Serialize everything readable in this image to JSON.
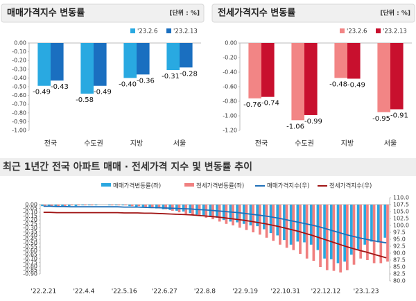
{
  "chart_data": [
    {
      "type": "bar",
      "title": "매매가격지수 변동률",
      "unit_label": "[단위 : %]",
      "categories": [
        "전국",
        "수도권",
        "지방",
        "서울"
      ],
      "series": [
        {
          "name": "'23.2.6",
          "color": "#29a9e1",
          "values": [
            -0.49,
            -0.58,
            -0.4,
            -0.31
          ],
          "value_labels": [
            "-0.49",
            "-0.58",
            "-0.40",
            "-0.31"
          ]
        },
        {
          "name": "'23.2.13",
          "color": "#1a6fc0",
          "values": [
            -0.43,
            -0.49,
            -0.36,
            -0.28
          ],
          "value_labels": [
            "-0.43",
            "-0.49",
            "-0.36",
            "-0.28"
          ]
        }
      ],
      "ylim": [
        -1,
        0
      ],
      "yticks": [
        {
          "value": 0,
          "label": "0.00"
        },
        {
          "value": -0.1,
          "label": "-0.10"
        },
        {
          "value": -0.2,
          "label": "-0.20"
        },
        {
          "value": -0.3,
          "label": "-0.30"
        },
        {
          "value": -0.4,
          "label": "-0.40"
        },
        {
          "value": -0.5,
          "label": "-0.50"
        },
        {
          "value": -0.6,
          "label": "-0.60"
        },
        {
          "value": -0.7,
          "label": "-0.70"
        },
        {
          "value": -0.8,
          "label": "-0.80"
        },
        {
          "value": -0.9,
          "label": "-0.90"
        },
        {
          "value": -1,
          "label": "-1.00"
        }
      ]
    },
    {
      "type": "bar",
      "title": "전세가격지수 변동률",
      "unit_label": "[단위 : %]",
      "categories": [
        "전국",
        "수도권",
        "지방",
        "서울"
      ],
      "series": [
        {
          "name": "'23.2.6",
          "color": "#f28585",
          "values": [
            -0.76,
            -1.06,
            -0.48,
            -0.95
          ],
          "value_labels": [
            "-0.76",
            "-1.06",
            "-0.48",
            "-0.95"
          ]
        },
        {
          "name": "'23.2.13",
          "color": "#c8102e",
          "values": [
            -0.74,
            -0.99,
            -0.49,
            -0.91
          ],
          "value_labels": [
            "-0.74",
            "-0.99",
            "-0.49",
            "-0.91"
          ]
        }
      ],
      "ylim": [
        -1.2,
        0
      ],
      "yticks": [
        {
          "value": 0,
          "label": "0.00"
        },
        {
          "value": -0.2,
          "label": "-0.20"
        },
        {
          "value": -0.4,
          "label": "-0.40"
        },
        {
          "value": -0.6,
          "label": "-0.60"
        },
        {
          "value": -0.8,
          "label": "-0.80"
        },
        {
          "value": -1,
          "label": "-1.00"
        },
        {
          "value": -1.2,
          "label": "-1.20"
        }
      ]
    },
    {
      "type": "combo",
      "title": "최근 1년간 전국 아파트 매매 · 전세가격 지수 및 변동률 추이",
      "categories": [
        "'22.2.21",
        null,
        null,
        null,
        null,
        null,
        "'22.4.4",
        null,
        null,
        null,
        null,
        null,
        "'22.5.16",
        null,
        null,
        null,
        null,
        null,
        "'22.6.27",
        null,
        null,
        null,
        null,
        null,
        "'22.8.8",
        null,
        null,
        null,
        null,
        null,
        "'22.9.19",
        null,
        null,
        null,
        null,
        null,
        "'22.10.31",
        null,
        null,
        null,
        null,
        null,
        "'22.12.12",
        null,
        null,
        null,
        null,
        null,
        "'23.1.23",
        null,
        null,
        null
      ],
      "series": [
        {
          "name": "매매가격변동률(좌)",
          "type": "bar",
          "color": "#2aa7e0",
          "values": [
            -0.02,
            -0.02,
            -0.03,
            -0.03,
            -0.02,
            -0.02,
            -0.01,
            -0.01,
            -0.01,
            0,
            -0.01,
            -0.01,
            -0.01,
            -0.02,
            -0.03,
            -0.03,
            -0.04,
            -0.05,
            -0.06,
            -0.07,
            -0.08,
            -0.09,
            -0.11,
            -0.13,
            -0.14,
            -0.16,
            -0.17,
            -0.2,
            -0.22,
            -0.23,
            -0.25,
            -0.27,
            -0.28,
            -0.32,
            -0.37,
            -0.4,
            -0.46,
            -0.52,
            -0.48,
            -0.49,
            -0.52,
            -0.59,
            -0.7,
            -0.71,
            -0.76,
            -0.74,
            -0.65,
            -0.59,
            -0.52,
            -0.48,
            -0.49,
            -0.43
          ]
        },
        {
          "name": "전세가격변동률(좌)",
          "type": "bar",
          "color": "#f08080",
          "values": [
            -0.02,
            -0.02,
            -0.02,
            -0.02,
            -0.01,
            -0.01,
            -0.01,
            -0.01,
            0,
            0,
            -0.01,
            -0.01,
            -0.01,
            -0.02,
            -0.02,
            -0.03,
            -0.04,
            -0.05,
            -0.06,
            -0.08,
            -0.1,
            -0.12,
            -0.13,
            -0.15,
            -0.17,
            -0.19,
            -0.22,
            -0.25,
            -0.27,
            -0.3,
            -0.33,
            -0.36,
            -0.39,
            -0.43,
            -0.47,
            -0.52,
            -0.56,
            -0.59,
            -0.64,
            -0.7,
            -0.73,
            -0.81,
            -0.85,
            -0.86,
            -0.88,
            -0.85,
            -0.78,
            -0.7,
            -0.72,
            -0.76,
            -0.76,
            -0.74
          ]
        },
        {
          "name": "매매가격지수(우)",
          "type": "line",
          "axis": "y2",
          "color": "#1f6fb8",
          "values": [
            106.9,
            106.9,
            106.8,
            106.8,
            106.7,
            106.7,
            106.7,
            106.7,
            106.7,
            106.7,
            106.7,
            106.7,
            106.6,
            106.6,
            106.6,
            106.5,
            106.4,
            106.4,
            106.3,
            106.2,
            106.1,
            106,
            105.9,
            105.7,
            105.6,
            105.4,
            105.2,
            105,
            104.8,
            104.6,
            104.3,
            104,
            103.7,
            103.4,
            103,
            102.6,
            102.1,
            101.6,
            101.1,
            100.6,
            100.1,
            99.5,
            98.8,
            98.1,
            97.4,
            96.7,
            96.1,
            95.5,
            95,
            94.5,
            94.1,
            93.7
          ]
        },
        {
          "name": "전세가격지수(우)",
          "type": "line",
          "axis": "y2",
          "color": "#a01414",
          "values": [
            104.7,
            104.7,
            104.6,
            104.6,
            104.6,
            104.6,
            104.6,
            104.6,
            104.6,
            104.6,
            104.6,
            104.6,
            104.5,
            104.5,
            104.5,
            104.4,
            104.4,
            104.3,
            104.2,
            104.1,
            104,
            103.9,
            103.8,
            103.6,
            103.4,
            103.2,
            103,
            102.7,
            102.4,
            102.1,
            101.8,
            101.4,
            101,
            100.6,
            100.1,
            99.6,
            99,
            98.4,
            97.8,
            97.1,
            96.4,
            95.6,
            94.8,
            94,
            93.2,
            92.4,
            91.7,
            91,
            90.4,
            89.7,
            89,
            88.3
          ]
        }
      ],
      "ylim": [
        -0.9,
        0
      ],
      "yticks": [
        {
          "value": 0,
          "label": "0.00"
        },
        {
          "value": -0.05,
          "label": "-0.05"
        },
        {
          "value": -0.1,
          "label": "-0.10"
        },
        {
          "value": -0.15,
          "label": "-0.15"
        },
        {
          "value": -0.2,
          "label": "-0.20"
        },
        {
          "value": -0.25,
          "label": "-0.25"
        },
        {
          "value": -0.3,
          "label": "-0.30"
        },
        {
          "value": -0.35,
          "label": "-0.35"
        },
        {
          "value": -0.4,
          "label": "-0.40"
        },
        {
          "value": -0.45,
          "label": "-0.45"
        },
        {
          "value": -0.5,
          "label": "-0.50"
        },
        {
          "value": -0.55,
          "label": "-0.55"
        },
        {
          "value": -0.6,
          "label": "-0.60"
        },
        {
          "value": -0.65,
          "label": "-0.65"
        },
        {
          "value": -0.7,
          "label": "-0.70"
        },
        {
          "value": -0.75,
          "label": "-0.75"
        },
        {
          "value": -0.8,
          "label": "-0.80"
        },
        {
          "value": -0.85,
          "label": "-0.85"
        },
        {
          "value": -0.9,
          "label": "-0.90"
        }
      ],
      "y2lim": [
        80,
        110
      ],
      "y2ticks": [
        {
          "value": 110,
          "label": "110.0"
        },
        {
          "value": 107.5,
          "label": "107.5"
        },
        {
          "value": 105,
          "label": "105.0"
        },
        {
          "value": 102.5,
          "label": "102.5"
        },
        {
          "value": 100,
          "label": "100.0"
        },
        {
          "value": 97.5,
          "label": "97.5"
        },
        {
          "value": 95,
          "label": "95.0"
        },
        {
          "value": 92.5,
          "label": "92.5"
        },
        {
          "value": 90,
          "label": "90.0"
        },
        {
          "value": 87.5,
          "label": "87.5"
        },
        {
          "value": 85,
          "label": "85.0"
        },
        {
          "value": 82.5,
          "label": "82.5"
        },
        {
          "value": 80,
          "label": "80.0"
        }
      ]
    }
  ]
}
